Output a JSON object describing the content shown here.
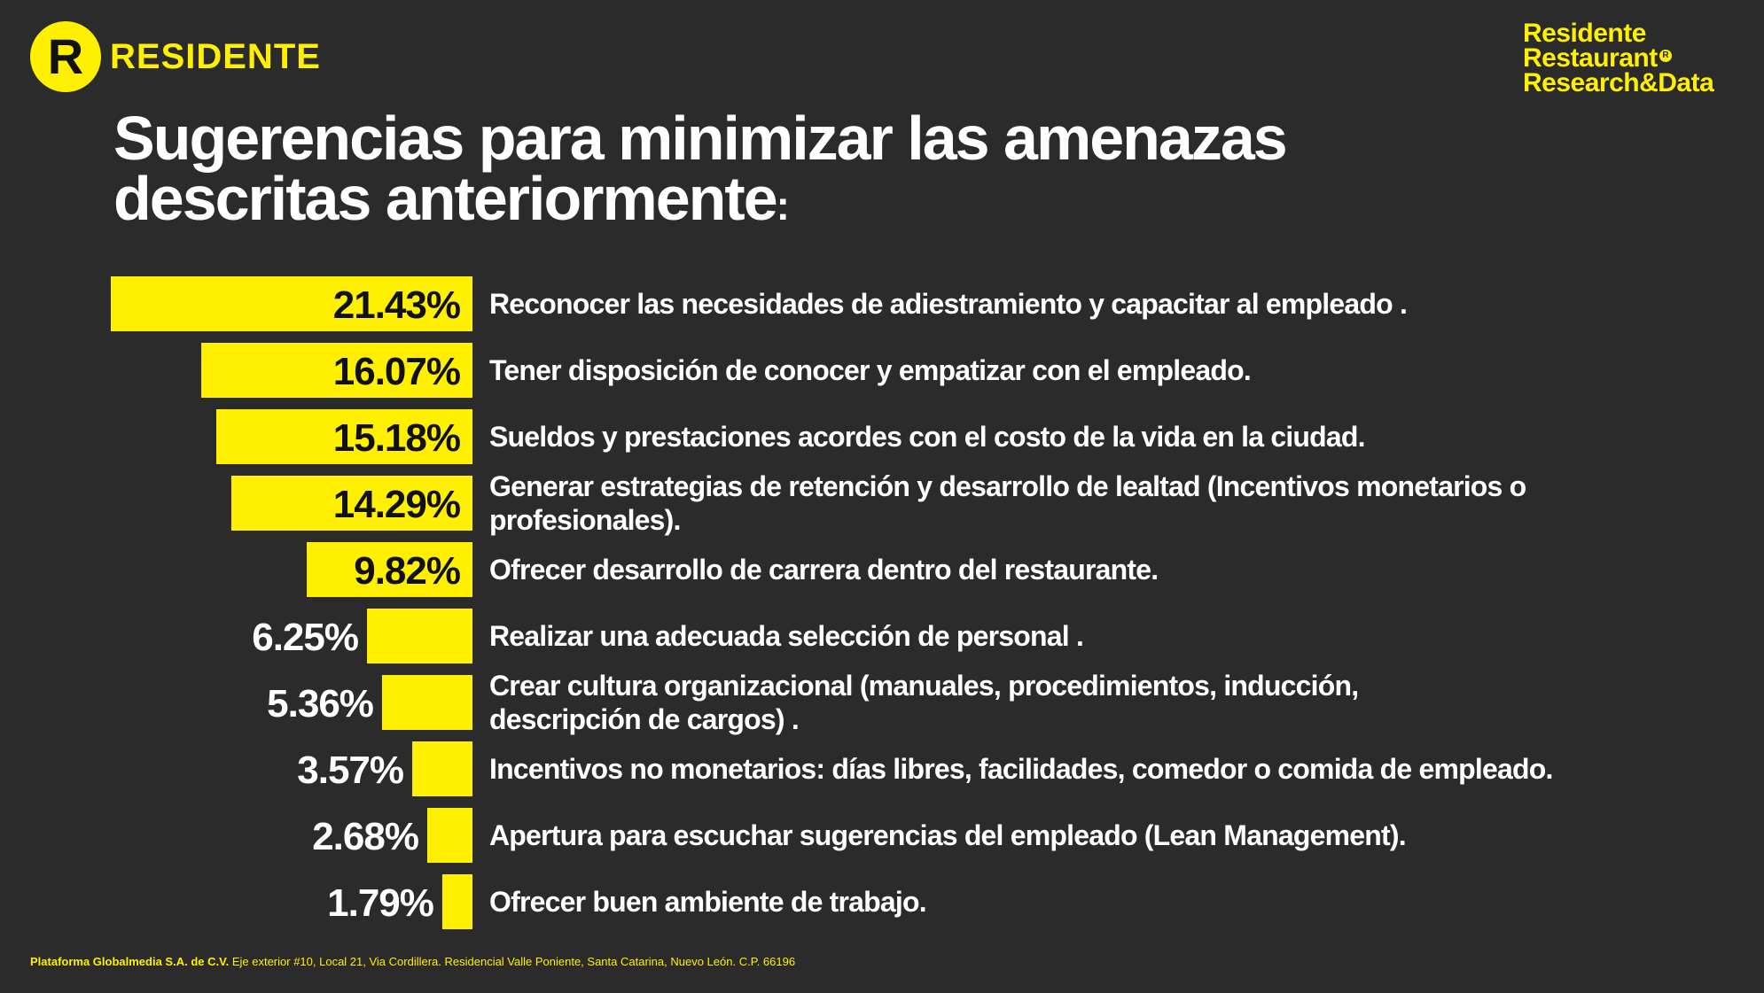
{
  "logo": {
    "letter": "R",
    "wordmark": "RESIDENTE"
  },
  "brand": {
    "line1": "Residente",
    "line2": "Restaurant",
    "line3": "Research&Data",
    "reg_mark": "R"
  },
  "title": {
    "text": "Sugerencias para minimizar las amenazas descritas anteriormente",
    "colon": ":"
  },
  "footer": {
    "company": "Plataforma Globalmedia S.A. de C.V.",
    "address": "Eje exterior #10, Local 21, Via Cordillera. Residencial Valle Poniente, Santa Catarina, Nuevo León. C.P. 66196"
  },
  "colors": {
    "background": "#2b2b2b",
    "accent": "#ffef00",
    "text": "#ffffff",
    "dark_text": "#111111"
  },
  "chart_data": {
    "type": "bar",
    "orientation": "horizontal",
    "value_suffix": "%",
    "categories": [
      [
        "Reconocer las necesidades de adiestramiento y capacitar al empleado ."
      ],
      [
        "Tener disposición de conocer y empatizar con el empleado."
      ],
      [
        "Sueldos y prestaciones acordes con el costo de la vida en la ciudad."
      ],
      [
        "Generar estrategias de retención y desarrollo de lealtad (Incentivos monetarios o",
        "profesionales)."
      ],
      [
        "Ofrecer desarrollo de carrera dentro del restaurante."
      ],
      [
        "Realizar una adecuada selección de personal ."
      ],
      [
        "Crear cultura organizacional (manuales, procedimientos, inducción,",
        "descripción de cargos) ."
      ],
      [
        "Incentivos no monetarios: días libres, facilidades, comedor o comida de empleado."
      ],
      [
        "Apertura para escuchar sugerencias del empleado (Lean Management)."
      ],
      [
        "Ofrecer buen ambiente de trabajo."
      ]
    ],
    "values": [
      21.43,
      16.07,
      15.18,
      14.29,
      9.82,
      6.25,
      5.36,
      3.57,
      2.68,
      1.79
    ],
    "value_labels": [
      "21.43%",
      "16.07%",
      "15.18%",
      "14.29%",
      "9.82%",
      "6.25%",
      "5.36%",
      "3.57%",
      "2.68%",
      "1.79%"
    ],
    "bar_color": "#ffef00",
    "xlim": [
      0,
      21.43
    ],
    "grid": false,
    "legend": "none"
  }
}
